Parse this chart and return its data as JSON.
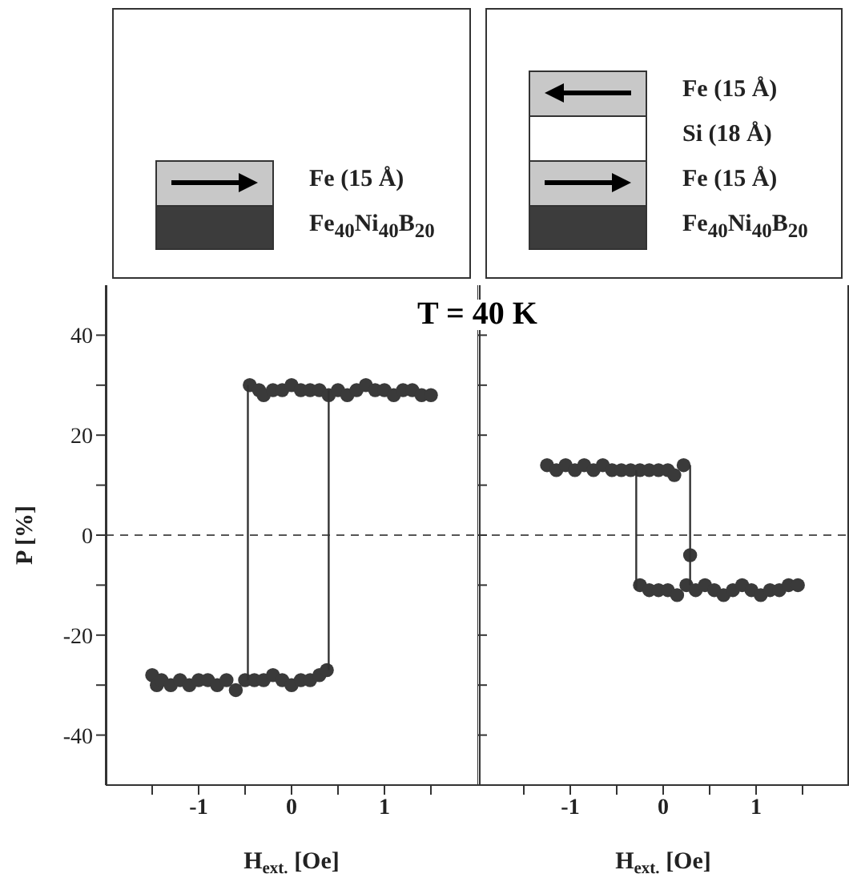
{
  "chart_data": [
    {
      "type": "scatter",
      "title": "T = 40 K",
      "xlabel": "H$_{ext.}$ [Oe]",
      "ylabel": "P [%]",
      "annotations": [
        "Fe (15 Å)",
        "Fe$_{40}$Ni$_{40}$B$_{20}$"
      ],
      "xlim": [
        -2,
        2
      ],
      "ylim": [
        -50,
        50
      ],
      "xticks": [
        {
          "value": -1.5,
          "label": null
        },
        -1,
        {
          "value": -0.5,
          "label": null
        },
        0,
        {
          "value": 0.5,
          "label": null
        },
        1,
        {
          "value": 1.5,
          "label": null
        }
      ],
      "yticks": [
        {
          "value": -40,
          "label": "-40"
        },
        {
          "value": -30,
          "label": null
        },
        {
          "value": -20,
          "label": "-20"
        },
        {
          "value": -10,
          "label": null
        },
        0,
        {
          "value": 10,
          "label": null
        },
        20,
        {
          "value": 30,
          "label": null
        },
        40
      ],
      "ref_lines": [
        {
          "axis": "y",
          "value": 0,
          "color": "#555555",
          "line_style": "dashed"
        }
      ],
      "series": [
        {
          "type": "scatter",
          "color": "#3a3a3a",
          "marker": "circle",
          "x": [
            -1.5,
            -1.45,
            -1.4,
            -1.3,
            -1.2,
            -1.1,
            -1.0,
            -0.9,
            -0.8,
            -0.7,
            -0.6,
            -0.5,
            -0.4,
            -0.3,
            -0.2,
            -0.1,
            0.0,
            0.1,
            0.2,
            0.3,
            0.38,
            -0.45,
            -0.35,
            -0.3,
            -0.2,
            -0.1,
            0.0,
            0.1,
            0.2,
            0.3,
            0.4,
            0.5,
            0.6,
            0.7,
            0.8,
            0.9,
            1.0,
            1.1,
            1.2,
            1.3,
            1.4,
            1.5
          ],
          "values": [
            -28,
            -30,
            -29,
            -30,
            -29,
            -30,
            -29,
            -29,
            -30,
            -29,
            -31,
            -29,
            -29,
            -29,
            -28,
            -29,
            -30,
            -29,
            -29,
            -28,
            -27,
            30,
            29,
            28,
            29,
            29,
            30,
            29,
            29,
            29,
            28,
            29,
            28,
            29,
            30,
            29,
            29,
            28,
            29,
            29,
            28,
            28
          ]
        },
        {
          "type": "line",
          "color": "#333333",
          "marker": "none",
          "x": [
            -0.47,
            -0.47
          ],
          "values": [
            -29,
            30
          ]
        },
        {
          "type": "line",
          "color": "#333333",
          "marker": "none",
          "x": [
            0.4,
            0.4
          ],
          "values": [
            -27,
            29
          ]
        }
      ]
    },
    {
      "type": "scatter",
      "xlabel": "H$_{ext.}$ [Oe]",
      "annotations": [
        "Fe (15 Å)",
        "Si (18 Å)",
        "Fe (15 Å)",
        "Fe$_{40}$Ni$_{40}$B$_{20}$"
      ],
      "xlim": [
        -2,
        2
      ],
      "ylim": [
        -50,
        50
      ],
      "tick_labels": "x",
      "xticks": [
        {
          "value": -1.5,
          "label": null
        },
        -1,
        {
          "value": -0.5,
          "label": null
        },
        0,
        {
          "value": 0.5,
          "label": null
        },
        1,
        {
          "value": 1.5,
          "label": null
        }
      ],
      "yticks": [
        -40,
        {
          "value": -30,
          "label": null
        },
        -20,
        {
          "value": -10,
          "label": null
        },
        0,
        {
          "value": 10,
          "label": null
        },
        20,
        {
          "value": 30,
          "label": null
        },
        40
      ],
      "ref_lines": [
        {
          "axis": "y",
          "value": 0,
          "color": "#555555",
          "line_style": "dashed"
        }
      ],
      "series": [
        {
          "type": "scatter",
          "color": "#3a3a3a",
          "marker": "circle",
          "x": [
            -1.25,
            -1.15,
            -1.05,
            -0.95,
            -0.85,
            -0.75,
            -0.65,
            -0.55,
            -0.45,
            -0.35,
            -0.25,
            -0.15,
            -0.05,
            0.05,
            0.12,
            0.22,
            -0.25,
            -0.15,
            -0.05,
            0.05,
            0.15,
            0.25,
            0.35,
            0.45,
            0.55,
            0.65,
            0.75,
            0.85,
            0.95,
            1.05,
            1.15,
            1.25,
            1.35,
            1.45,
            0.29
          ],
          "values": [
            14,
            13,
            14,
            13,
            14,
            13,
            14,
            13,
            13,
            13,
            13,
            13,
            13,
            13,
            12,
            14,
            -10,
            -11,
            -11,
            -11,
            -12,
            -10,
            -11,
            -10,
            -11,
            -12,
            -11,
            -10,
            -11,
            -12,
            -11,
            -11,
            -10,
            -10,
            -4
          ]
        },
        {
          "type": "line",
          "color": "#333333",
          "marker": "none",
          "x": [
            -0.29,
            -0.29
          ],
          "values": [
            13,
            -11
          ]
        },
        {
          "type": "line",
          "color": "#333333",
          "marker": "none",
          "x": [
            0.29,
            0.29
          ],
          "values": [
            14,
            -10
          ]
        }
      ]
    }
  ]
}
